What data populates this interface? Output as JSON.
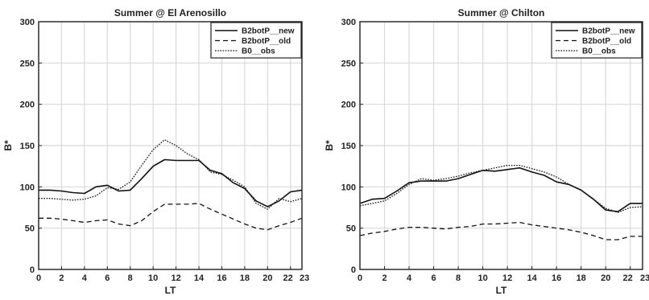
{
  "chart_data": [
    {
      "type": "line",
      "title": "Summer @ El Arenosillo",
      "xlabel": "LT",
      "ylabel": "B*",
      "xlim": [
        0,
        23
      ],
      "ylim": [
        0,
        300
      ],
      "xticks": [
        0,
        2,
        4,
        6,
        8,
        10,
        12,
        14,
        16,
        18,
        20,
        22,
        23
      ],
      "xtick_labels": [
        "0",
        "2",
        "4",
        "6",
        "8",
        "10",
        "12",
        "14",
        "16",
        "18",
        "20",
        "22",
        "23"
      ],
      "yticks": [
        0,
        50,
        100,
        150,
        200,
        250,
        300
      ],
      "ytick_labels": [
        "0",
        "50",
        "100",
        "150",
        "200",
        "250",
        "300"
      ],
      "grid": true,
      "legend_position": "top-right",
      "x": [
        0,
        1,
        2,
        3,
        4,
        5,
        6,
        7,
        8,
        9,
        10,
        11,
        12,
        13,
        14,
        15,
        16,
        17,
        18,
        19,
        20,
        21,
        22,
        23
      ],
      "series": [
        {
          "name": "B2botP__new",
          "style": "solid",
          "values": [
            96,
            96,
            95,
            93,
            92,
            100,
            102,
            95,
            96,
            110,
            125,
            133,
            132,
            132,
            132,
            120,
            116,
            105,
            98,
            83,
            76,
            83,
            94,
            96
          ]
        },
        {
          "name": "B2botP__old",
          "style": "dashed",
          "values": [
            62,
            62,
            61,
            59,
            57,
            59,
            60,
            55,
            53,
            59,
            70,
            79,
            79,
            79,
            80,
            73,
            67,
            61,
            55,
            50,
            48,
            53,
            57,
            62
          ]
        },
        {
          "name": "B0__obs",
          "style": "dotted",
          "values": [
            86,
            86,
            85,
            84,
            85,
            89,
            99,
            97,
            106,
            126,
            145,
            157,
            150,
            140,
            133,
            118,
            115,
            108,
            100,
            80,
            73,
            86,
            82,
            86
          ]
        }
      ]
    },
    {
      "type": "line",
      "title": "Summer @ Chilton",
      "xlabel": "LT",
      "ylabel": "B*",
      "xlim": [
        0,
        23
      ],
      "ylim": [
        0,
        300
      ],
      "xticks": [
        0,
        2,
        4,
        6,
        8,
        10,
        12,
        14,
        16,
        18,
        20,
        22,
        23
      ],
      "xtick_labels": [
        "0",
        "2",
        "4",
        "6",
        "8",
        "10",
        "12",
        "14",
        "16",
        "18",
        "20",
        "22",
        "23"
      ],
      "yticks": [
        0,
        50,
        100,
        150,
        200,
        250,
        300
      ],
      "ytick_labels": [
        "0",
        "50",
        "100",
        "150",
        "200",
        "250",
        "300"
      ],
      "grid": true,
      "legend_position": "top-right",
      "x": [
        0,
        1,
        2,
        3,
        4,
        5,
        6,
        7,
        8,
        9,
        10,
        11,
        12,
        13,
        14,
        15,
        16,
        17,
        18,
        19,
        20,
        21,
        22,
        23
      ],
      "series": [
        {
          "name": "B2botP__new",
          "style": "solid",
          "values": [
            80,
            85,
            86,
            95,
            105,
            107,
            107,
            107,
            110,
            115,
            120,
            119,
            121,
            123,
            118,
            114,
            106,
            103,
            96,
            85,
            72,
            70,
            80,
            80
          ]
        },
        {
          "name": "B2botP__old",
          "style": "dashed",
          "values": [
            41,
            44,
            46,
            49,
            51,
            51,
            50,
            49,
            51,
            52,
            55,
            55,
            56,
            57,
            54,
            52,
            50,
            48,
            45,
            41,
            36,
            36,
            40,
            40
          ]
        },
        {
          "name": "B0__obs",
          "style": "dotted",
          "values": [
            77,
            80,
            83,
            92,
            103,
            110,
            108,
            110,
            113,
            117,
            120,
            123,
            126,
            126,
            122,
            118,
            112,
            103,
            96,
            85,
            74,
            69,
            75,
            76
          ]
        }
      ]
    }
  ]
}
